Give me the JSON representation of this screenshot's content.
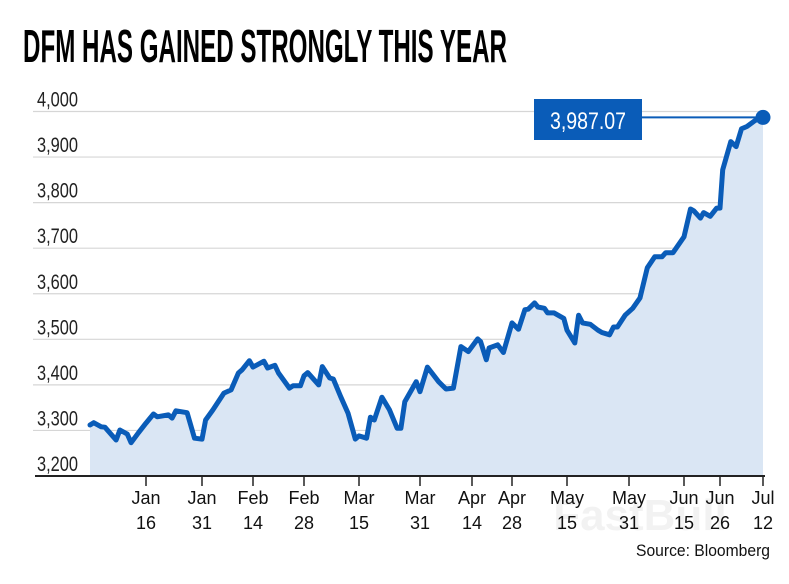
{
  "chart_data": {
    "type": "area",
    "title": "DFM HAS GAINED STRONGLY THIS YEAR",
    "xlabel": "",
    "ylabel": "",
    "ylim": [
      3200,
      4000
    ],
    "yticks": [
      "3,200",
      "3,300",
      "3,400",
      "3,500",
      "3,600",
      "3,700",
      "3,800",
      "3,900",
      "4,000"
    ],
    "ytick_values": [
      3200,
      3300,
      3400,
      3500,
      3600,
      3700,
      3800,
      3900,
      4000
    ],
    "xticks": [
      {
        "month": "Jan",
        "day": "16",
        "date": "01-16"
      },
      {
        "month": "Jan",
        "day": "31",
        "date": "01-31"
      },
      {
        "month": "Feb",
        "day": "14",
        "date": "02-14"
      },
      {
        "month": "Feb",
        "day": "28",
        "date": "02-28"
      },
      {
        "month": "Mar",
        "day": "15",
        "date": "03-15"
      },
      {
        "month": "Mar",
        "day": "31",
        "date": "03-31"
      },
      {
        "month": "Apr",
        "day": "14",
        "date": "04-14"
      },
      {
        "month": "Apr",
        "day": "28",
        "date": "04-28"
      },
      {
        "month": "May",
        "day": "15",
        "date": "05-15"
      },
      {
        "month": "May",
        "day": "31",
        "date": "05-31"
      },
      {
        "month": "Jun",
        "day": "15",
        "date": "06-15"
      },
      {
        "month": "Jun",
        "day": "26",
        "date": "06-26"
      },
      {
        "month": "Jul",
        "day": "12",
        "date": "07-12"
      }
    ],
    "grid": true,
    "line_color": "#0a5cb8",
    "fill_color": "#dae6f4",
    "points": [
      [
        "01-01",
        3312
      ],
      [
        "01-02",
        3317
      ],
      [
        "01-04",
        3308
      ],
      [
        "01-05",
        3307
      ],
      [
        "01-08",
        3279
      ],
      [
        "01-09",
        3301
      ],
      [
        "01-11",
        3292
      ],
      [
        "01-12",
        3273
      ],
      [
        "01-14",
        3295
      ],
      [
        "01-16",
        3316
      ],
      [
        "01-18",
        3336
      ],
      [
        "01-19",
        3330
      ],
      [
        "01-22",
        3334
      ],
      [
        "01-23",
        3327
      ],
      [
        "01-24",
        3343
      ],
      [
        "01-27",
        3339
      ],
      [
        "01-29",
        3283
      ],
      [
        "01-31",
        3281
      ],
      [
        "02-01",
        3323
      ],
      [
        "02-03",
        3345
      ],
      [
        "02-06",
        3382
      ],
      [
        "02-08",
        3389
      ],
      [
        "02-10",
        3426
      ],
      [
        "02-11",
        3433
      ],
      [
        "02-13",
        3453
      ],
      [
        "02-14",
        3439
      ],
      [
        "02-17",
        3452
      ],
      [
        "02-18",
        3437
      ],
      [
        "02-20",
        3443
      ],
      [
        "02-21",
        3426
      ],
      [
        "02-24",
        3393
      ],
      [
        "02-25",
        3398
      ],
      [
        "02-27",
        3398
      ],
      [
        "02-28",
        3420
      ],
      [
        "03-01",
        3427
      ],
      [
        "03-04",
        3400
      ],
      [
        "03-05",
        3440
      ],
      [
        "03-07",
        3415
      ],
      [
        "03-08",
        3413
      ],
      [
        "03-10",
        3374
      ],
      [
        "03-12",
        3338
      ],
      [
        "03-14",
        3281
      ],
      [
        "03-15",
        3288
      ],
      [
        "03-17",
        3283
      ],
      [
        "03-18",
        3329
      ],
      [
        "03-19",
        3323
      ],
      [
        "03-21",
        3373
      ],
      [
        "03-23",
        3345
      ],
      [
        "03-25",
        3305
      ],
      [
        "03-26",
        3305
      ],
      [
        "03-27",
        3363
      ],
      [
        "03-30",
        3407
      ],
      [
        "03-31",
        3385
      ],
      [
        "04-02",
        3439
      ],
      [
        "04-05",
        3407
      ],
      [
        "04-07",
        3391
      ],
      [
        "04-09",
        3393
      ],
      [
        "04-11",
        3484
      ],
      [
        "04-13",
        3473
      ],
      [
        "04-16",
        3501
      ],
      [
        "04-17",
        3495
      ],
      [
        "04-19",
        3455
      ],
      [
        "04-20",
        3481
      ],
      [
        "04-23",
        3488
      ],
      [
        "04-25",
        3471
      ],
      [
        "04-28",
        3536
      ],
      [
        "04-30",
        3522
      ],
      [
        "05-02",
        3565
      ],
      [
        "05-03",
        3566
      ],
      [
        "05-05",
        3580
      ],
      [
        "05-06",
        3571
      ],
      [
        "05-08",
        3568
      ],
      [
        "05-09",
        3558
      ],
      [
        "05-11",
        3558
      ],
      [
        "05-14",
        3546
      ],
      [
        "05-15",
        3520
      ],
      [
        "05-17",
        3492
      ],
      [
        "05-18",
        3553
      ],
      [
        "05-19",
        3536
      ],
      [
        "05-21",
        3533
      ],
      [
        "05-23",
        3520
      ],
      [
        "05-24",
        3515
      ],
      [
        "05-26",
        3510
      ],
      [
        "05-27",
        3527
      ],
      [
        "05-28",
        3527
      ],
      [
        "05-30",
        3553
      ],
      [
        "06-01",
        3568
      ],
      [
        "06-03",
        3591
      ],
      [
        "06-05",
        3657
      ],
      [
        "06-07",
        3681
      ],
      [
        "06-09",
        3681
      ],
      [
        "06-10",
        3690
      ],
      [
        "06-12",
        3690
      ],
      [
        "06-15",
        3725
      ],
      [
        "06-17",
        3786
      ],
      [
        "06-18",
        3782
      ],
      [
        "06-20",
        3766
      ],
      [
        "06-21",
        3778
      ],
      [
        "06-23",
        3770
      ],
      [
        "06-25",
        3788
      ],
      [
        "06-26",
        3788
      ],
      [
        "06-27",
        3872
      ],
      [
        "06-30",
        3934
      ],
      [
        "07-02",
        3923
      ],
      [
        "07-04",
        3962
      ],
      [
        "07-06",
        3967
      ],
      [
        "07-09",
        3980
      ],
      [
        "07-12",
        3987.07
      ]
    ],
    "annotation": {
      "label": "3,987.07",
      "value": 3987.07,
      "box_color": "#0a5cb8"
    },
    "source": "Source: Bloomberg"
  },
  "watermark": "FastBull"
}
